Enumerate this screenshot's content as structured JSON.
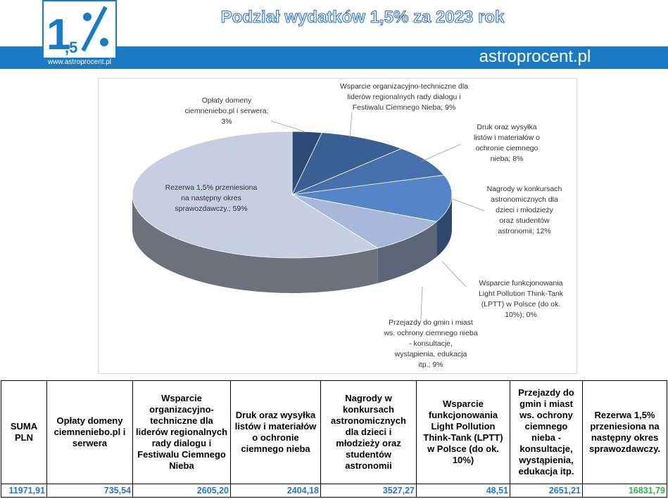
{
  "header": {
    "logo_main": "1",
    "logo_sub": ",5",
    "logo_url": "www.astroprocent.pl",
    "title": "Podział wydatków 1,5% za 2023 rok",
    "site": "astroprocent.pl"
  },
  "chart_data": {
    "type": "pie",
    "categories": [
      "Opłaty domeny ciemneniebo.pl i serwera;",
      "Wsparcie organizacyjno-techniczne dla liderów regionalnych rady dialogu i Festiwalu Ciemnego Nieba;",
      "Druk oraz wysyłka listów i materiałów o ochronie ciemnego nieba;",
      "Nagrody w konkursach astronomicznych dla dzieci i młodzieży oraz studentów astronomii;",
      "Wsparcie funkcjonowania Light Pollution Think-Tank (LPTT) w Polsce (do ok. 10%);",
      "Przejazdy do gmin i miast ws. ochrony ciemnego nieba - konsultacje, wystąpienia, edukacja itp.;",
      "Rezerwa 1,5% przeniesiona na następny okres sprawozdawczy.;"
    ],
    "values": [
      3,
      9,
      8,
      12,
      0,
      9,
      59
    ],
    "value_labels": [
      "3%",
      "9%",
      "8%",
      "12%",
      "0%",
      "9%",
      "59%"
    ],
    "colors": [
      "#2e4b78",
      "#3a5f94",
      "#4570ab",
      "#5485c6",
      "#7b9ad0",
      "#a7b8da",
      "#c6cee2"
    ]
  },
  "table": {
    "headers": [
      "SUMA PLN",
      "Opłaty domeny ciemneniebo.pl i serwera",
      "Wsparcie organizacyjno-techniczne dla liderów regionalnych rady dialogu i Festiwalu Ciemnego Nieba",
      "Druk oraz wysyłka listów i materiałów o ochronie ciemnego nieba",
      "Nagrody w konkursach astronomicznych dla dzieci i młodzieży oraz studentów astronomii",
      "Wsparcie funkcjonowania Light Pollution Think-Tank (LPTT) w Polsce (do ok. 10%)",
      "Przejazdy do gmin i miast ws. ochrony ciemnego nieba - konsultacje, wystąpienia, edukacja itp.",
      "Rezerwa 1,5% przeniesiona na następny okres sprawozdawczy."
    ],
    "row": [
      "11971,91",
      "735,54",
      "2605,20",
      "2404,18",
      "3527,27",
      "48,51",
      "2651,21",
      "16831,79"
    ]
  }
}
